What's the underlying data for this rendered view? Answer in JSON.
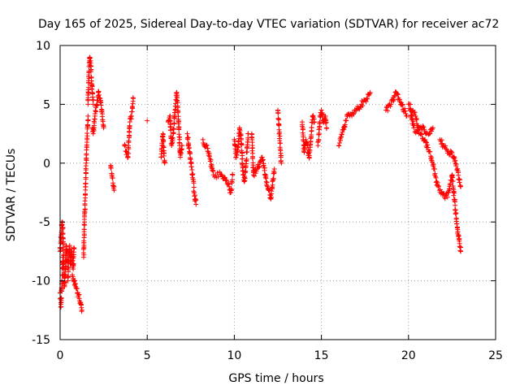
{
  "chart_data": {
    "type": "scatter",
    "title": "Day 165 of 2025, Sidereal Day-to-day VTEC variation (SDTVAR) for receiver ac72",
    "xlabel": "GPS time / hours",
    "ylabel": "SDTVAR / TECUs",
    "xlim": [
      0,
      25
    ],
    "ylim": [
      -15,
      10
    ],
    "xticks": [
      0,
      5,
      10,
      15,
      20,
      25
    ],
    "yticks": [
      -15,
      -10,
      -5,
      0,
      5,
      10
    ],
    "xtick_labels": [
      "0",
      "5",
      "10",
      "15",
      "20",
      "25"
    ],
    "ytick_labels": [
      "-15",
      "-10",
      "-5",
      "0",
      "5",
      "10"
    ],
    "grid": true,
    "marker": "plus",
    "color": "#ff0000",
    "series": [
      {
        "name": "SDTVAR",
        "segments": [
          {
            "x": [
              0.0,
              0.1,
              0.15,
              0.2,
              0.25,
              0.3,
              0.35,
              0.4
            ],
            "y": [
              -7.5,
              -5.0,
              -5.5,
              -8.0,
              -10.5,
              -9.0,
              -7.0,
              -8.5
            ]
          },
          {
            "x": [
              0.0,
              0.05,
              0.1,
              0.15
            ],
            "y": [
              -11.0,
              -12.2,
              -10.0,
              -8.0
            ]
          },
          {
            "x": [
              0.45,
              0.5,
              0.55,
              0.6,
              0.65,
              0.7,
              0.75,
              0.8
            ],
            "y": [
              -10.0,
              -8.0,
              -7.0,
              -8.5,
              -7.5,
              -8.0,
              -9.0,
              -7.2
            ]
          },
          {
            "x": [
              0.7,
              0.8,
              0.9,
              1.0,
              1.1,
              1.2,
              1.25
            ],
            "y": [
              -9.5,
              -10.0,
              -10.5,
              -11.0,
              -11.5,
              -12.0,
              -12.5
            ]
          },
          {
            "x": [
              1.35,
              1.4,
              1.45,
              1.5,
              1.55,
              1.6
            ],
            "y": [
              -8.0,
              -5.0,
              -2.0,
              0.0,
              2.0,
              4.0
            ]
          },
          {
            "x": [
              1.6,
              1.65,
              1.7,
              1.75,
              1.8,
              1.85,
              1.9
            ],
            "y": [
              5.0,
              7.5,
              9.0,
              8.5,
              7.0,
              6.0,
              5.0
            ]
          },
          {
            "x": [
              1.85,
              1.9,
              2.0,
              2.1,
              2.2,
              2.3,
              2.4,
              2.5
            ],
            "y": [
              3.0,
              2.5,
              4.0,
              5.0,
              6.0,
              5.5,
              4.5,
              3.0
            ]
          },
          {
            "x": [
              2.9,
              3.1
            ],
            "y": [
              -0.2,
              -2.3
            ]
          },
          {
            "x": [
              3.7,
              3.8,
              3.9,
              4.0,
              4.1,
              4.2
            ],
            "y": [
              1.5,
              1.0,
              0.5,
              3.5,
              4.0,
              5.5
            ]
          },
          {
            "x": [
              5.0
            ],
            "y": [
              3.6
            ]
          },
          {
            "x": [
              5.8,
              5.9,
              6.0
            ],
            "y": [
              0.5,
              2.5,
              0.0
            ]
          },
          {
            "x": [
              6.2,
              6.3,
              6.4,
              6.5,
              6.6,
              6.7,
              6.8,
              6.9,
              7.0
            ],
            "y": [
              3.5,
              4.0,
              1.5,
              2.5,
              4.5,
              6.0,
              3.5,
              0.5,
              1.5
            ]
          },
          {
            "x": [
              7.3,
              7.5,
              7.6,
              7.7,
              7.8
            ],
            "y": [
              2.5,
              0.0,
              -1.0,
              -2.5,
              -3.5
            ]
          },
          {
            "x": [
              8.2,
              8.5,
              8.8,
              9.2,
              9.5,
              9.7,
              9.8,
              9.9
            ],
            "y": [
              2.0,
              1.0,
              -1.0,
              -1.0,
              -1.5,
              -2.0,
              -2.5,
              -1.0
            ]
          },
          {
            "x": [
              10.0,
              10.1,
              10.2,
              10.3,
              10.4,
              10.5,
              10.6,
              10.8
            ],
            "y": [
              2.0,
              0.5,
              1.0,
              3.0,
              2.0,
              -1.0,
              -1.5,
              2.5
            ]
          },
          {
            "x": [
              11.0,
              11.1,
              11.3,
              11.6,
              11.9,
              12.1,
              12.3
            ],
            "y": [
              2.5,
              -1.0,
              -0.5,
              0.5,
              -2.0,
              -3.0,
              -0.5
            ]
          },
          {
            "x": [
              12.5,
              12.7
            ],
            "y": [
              4.5,
              0.0
            ]
          },
          {
            "x": [
              13.9,
              14.0,
              14.1,
              14.3,
              14.5,
              14.6
            ],
            "y": [
              3.5,
              1.0,
              2.0,
              0.5,
              4.0,
              3.5
            ]
          },
          {
            "x": [
              14.8,
              14.9,
              15.0,
              15.1,
              15.2,
              15.3
            ],
            "y": [
              1.5,
              3.5,
              4.5,
              3.5,
              4.0,
              3.0
            ]
          },
          {
            "x": [
              16.0,
              16.5,
              17.0,
              17.3,
              17.6,
              17.8
            ],
            "y": [
              1.5,
              4.0,
              4.5,
              5.0,
              5.5,
              6.0
            ]
          },
          {
            "x": [
              18.7,
              19.0,
              19.3,
              19.6,
              19.9
            ],
            "y": [
              4.5,
              5.0,
              6.0,
              5.0,
              4.0
            ]
          },
          {
            "x": [
              20.0,
              20.2,
              20.4,
              20.6,
              20.8,
              21.0,
              21.2,
              21.4
            ],
            "y": [
              5.0,
              4.5,
              4.0,
              3.0,
              3.0,
              2.5,
              2.5,
              3.0
            ]
          },
          {
            "x": [
              20.1,
              20.3,
              20.6,
              20.9,
              21.2,
              21.5
            ],
            "y": [
              4.5,
              3.0,
              2.5,
              2.0,
              1.0,
              -0.5
            ]
          },
          {
            "x": [
              21.5,
              21.7,
              21.9,
              22.1,
              22.3,
              22.5,
              22.7,
              22.8,
              22.9,
              23.0
            ],
            "y": [
              -1.0,
              -2.0,
              -2.5,
              -3.0,
              -2.5,
              -1.0,
              -4.0,
              -5.5,
              -6.5,
              -7.5
            ]
          },
          {
            "x": [
              21.8,
              22.0,
              22.3,
              22.6,
              22.8,
              23.0
            ],
            "y": [
              2.0,
              1.5,
              1.0,
              0.5,
              -0.5,
              -2.0
            ]
          }
        ]
      }
    ]
  }
}
